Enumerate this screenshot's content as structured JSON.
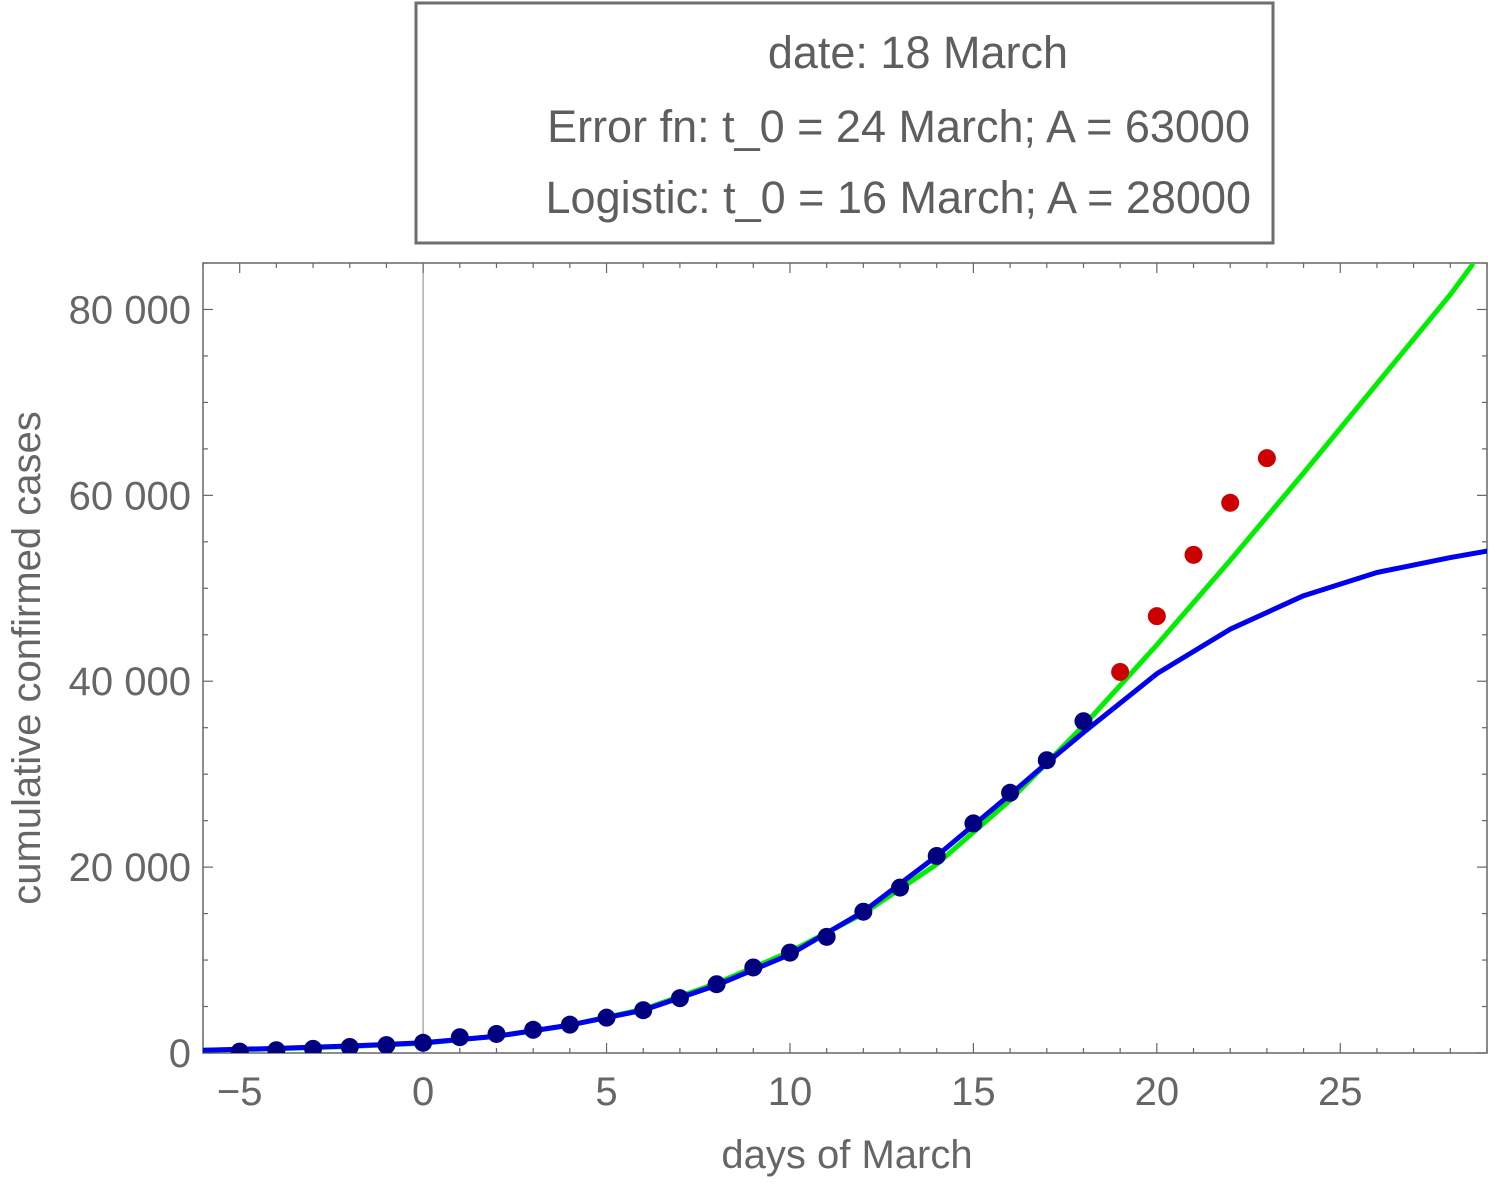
{
  "chart_data": {
    "type": "scatter",
    "title_lines": [
      "date: 18 March",
      "Error fn: t_0 = 24 March; A = 63000",
      "Logistic: t_0 = 16 March; A = 28000"
    ],
    "xlabel": "days of March",
    "ylabel": "cumulative confirmed cases",
    "xlim": [
      -6,
      29
    ],
    "ylim": [
      0,
      85000
    ],
    "x_ticks": [
      {
        "value": -5,
        "label": "−5"
      },
      {
        "value": 0,
        "label": "0"
      },
      {
        "value": 5,
        "label": "5"
      },
      {
        "value": 10,
        "label": "10"
      },
      {
        "value": 15,
        "label": "15"
      },
      {
        "value": 20,
        "label": "20"
      },
      {
        "value": 25,
        "label": "25"
      }
    ],
    "y_ticks": [
      {
        "value": 0,
        "label": "0"
      },
      {
        "value": 20000,
        "label": "20 000"
      },
      {
        "value": 40000,
        "label": "40 000"
      },
      {
        "value": 60000,
        "label": "60 000"
      },
      {
        "value": 80000,
        "label": "80 000"
      }
    ],
    "grid": false,
    "series": [
      {
        "kind": "points",
        "color": "#000080",
        "x": [
          -5,
          -4,
          -3,
          -2,
          -1,
          0,
          1,
          2,
          3,
          4,
          5,
          6,
          7,
          8,
          9,
          10,
          11,
          12,
          13,
          14,
          15,
          16,
          17,
          18
        ],
        "y": [
          150,
          300,
          450,
          650,
          850,
          1100,
          1700,
          2050,
          2500,
          3050,
          3800,
          4600,
          5900,
          7400,
          9200,
          10800,
          12500,
          15200,
          17800,
          21200,
          24700,
          28000,
          31500,
          35700
        ]
      },
      {
        "kind": "points",
        "color": "#cc0000",
        "x": [
          19,
          20,
          21,
          22,
          23
        ],
        "y": [
          41000,
          47000,
          53600,
          59200,
          64000
        ]
      },
      {
        "kind": "line",
        "color": "#00ee00",
        "x": [
          -6,
          -4,
          -2,
          0,
          2,
          4,
          6,
          8,
          10,
          12,
          14,
          16,
          18,
          20,
          22,
          24,
          26,
          28,
          28.6
        ],
        "y": [
          300,
          450,
          700,
          1050,
          1800,
          3000,
          4700,
          7500,
          10900,
          15000,
          20300,
          27200,
          35200,
          43900,
          53000,
          62400,
          72000,
          81600,
          84800
        ]
      },
      {
        "kind": "line",
        "color": "#0000ee",
        "x": [
          -6,
          -4,
          -2,
          0,
          2,
          4,
          6,
          8,
          10,
          12,
          14,
          16,
          17,
          18,
          20,
          22,
          24,
          26,
          28,
          29
        ],
        "y": [
          300,
          500,
          750,
          1100,
          1800,
          3000,
          4600,
          7300,
          10600,
          15200,
          21200,
          27800,
          31200,
          34500,
          40800,
          45600,
          49200,
          51700,
          53300,
          54000
        ]
      }
    ]
  }
}
